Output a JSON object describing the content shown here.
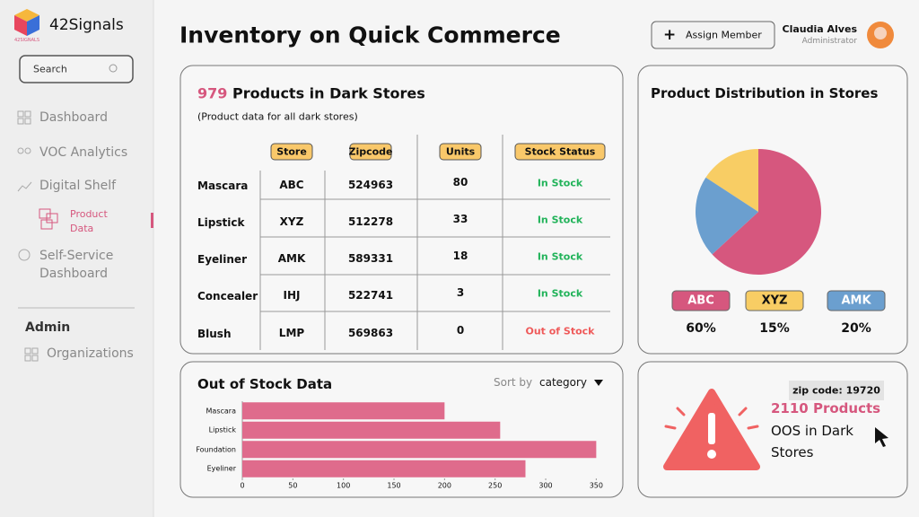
{
  "sidebar": {
    "brand": "42Signals",
    "brand_small": "42SIGNALS",
    "search": "Search",
    "nav": [
      "Dashboard",
      "VOC Analytics",
      "Digital Shelf",
      "Product Data",
      "Self-Service Dashboard"
    ],
    "admin_title": "Admin",
    "admin_nav": [
      "Organizations"
    ]
  },
  "header": {
    "title": "Inventory on Quick Commerce",
    "button": "Assign Member",
    "user_name": "Claudia Alves",
    "user_role": "Administrator"
  },
  "products_card": {
    "count": 979,
    "title": "Products in Dark Stores",
    "subtitle": "(Product data for all dark stores)"
  },
  "table": {
    "header": [
      "Store",
      "Zipcode",
      "Units",
      "Stock Status"
    ],
    "rows": [
      {
        "product": "Mascara",
        "store": "ABC",
        "zipcode": 524963,
        "units": 80,
        "status": "In Stock",
        "status_color": "#22b35a"
      },
      {
        "product": "Lipstick",
        "store": "XYZ",
        "zipcode": 512278,
        "units": 33,
        "status": "In Stock",
        "status_color": "#22b35a"
      },
      {
        "product": "Eyeliner",
        "store": "AMK",
        "zipcode": 589331,
        "units": 18,
        "status": "In Stock",
        "status_color": "#22b35a"
      },
      {
        "product": "Concealer",
        "store": "IHJ",
        "zipcode": 522741,
        "units": 3,
        "status": "In Stock",
        "status_color": "#22b35a"
      },
      {
        "product": "Blush",
        "store": "LMP",
        "zipcode": 569863,
        "units": 0,
        "status": "Out of Stock",
        "status_color": "#ef5a5a"
      }
    ]
  },
  "chart_data": [
    {
      "type": "pie",
      "title": "Product Distribution in Stores",
      "categories": [
        "ABC",
        "XYZ",
        "AMK"
      ],
      "values": [
        60,
        15,
        20
      ],
      "value_labels": [
        "60%",
        "15%",
        "20%"
      ],
      "colors": [
        "#d6577e",
        "#f8cd64",
        "#6b9fcf"
      ]
    },
    {
      "type": "bar",
      "orientation": "horizontal",
      "title": "Out of Stock Data",
      "categories": [
        "Mascara",
        "Lipstick",
        "Foundation",
        "Eyeliner"
      ],
      "values": [
        200,
        255,
        350,
        280
      ],
      "color": "#df6b8c",
      "xlim": [
        0,
        355
      ],
      "xticks": [
        0,
        50,
        100,
        150,
        200,
        250,
        300,
        350
      ]
    }
  ],
  "sort": {
    "label": "Sort by",
    "value": "category"
  },
  "alert": {
    "tag": "zip code: 19720",
    "count": "2110 Products",
    "text": "OOS in Dark Stores"
  }
}
